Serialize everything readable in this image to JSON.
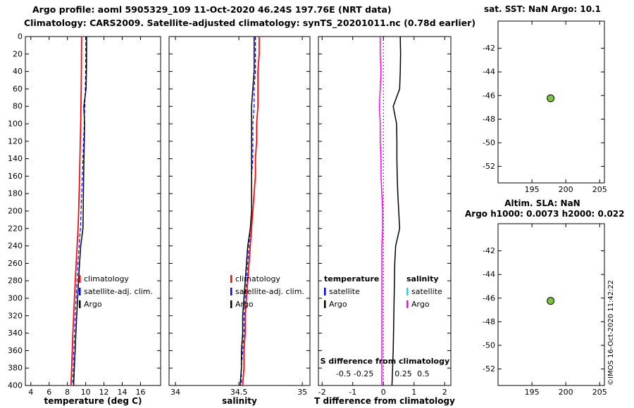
{
  "header": {
    "line1": "Argo profile: aoml 5905329_109 11-Oct-2020 46.24S 197.76E (NRT data)",
    "line2": "Climatology: CARS2009. Satellite-adjusted climatology: synTS_20201011.nc (0.78d earlier)"
  },
  "watermark": "©IMOS 16-Oct-2020 11:42:22",
  "colors": {
    "climatology": "#ff0000",
    "satellite_adjusted_climatology": "#0000ff",
    "argo": "#000000",
    "satellite_salinity": "#00e5e5",
    "argo_salinity": "#ff00ff",
    "station_marker_fill": "#7dc832"
  },
  "chart_data": [
    {
      "type": "line",
      "title": "",
      "xlabel": "temperature (deg C)",
      "ylabel": "depth (m, unlabeled axis)",
      "xlim": [
        3.4,
        18.2
      ],
      "ylim": [
        0,
        400
      ],
      "xticks": [
        4,
        6,
        8,
        10,
        12,
        14,
        16
      ],
      "yticks": [
        0,
        20,
        40,
        60,
        80,
        100,
        120,
        140,
        160,
        180,
        200,
        220,
        240,
        260,
        280,
        300,
        320,
        340,
        360,
        380,
        400
      ],
      "ytick_labels": true,
      "depths": [
        0,
        20,
        40,
        60,
        80,
        100,
        120,
        140,
        160,
        180,
        200,
        220,
        240,
        260,
        280,
        300,
        320,
        340,
        360,
        380,
        400
      ],
      "series": [
        {
          "name": "climatology",
          "color": "#ff0000",
          "width": 1.7,
          "x": [
            9.55,
            9.54,
            9.53,
            9.51,
            9.48,
            9.45,
            9.41,
            9.37,
            9.33,
            9.28,
            9.23,
            9.17,
            9.06,
            8.96,
            8.86,
            8.77,
            8.68,
            8.6,
            8.53,
            8.46,
            8.4
          ]
        },
        {
          "name": "satellite-adj. clim.",
          "color": "#0000ff",
          "width": 1.2,
          "dash": true,
          "x": [
            10.02,
            10.01,
            9.99,
            9.96,
            9.9,
            9.84,
            9.77,
            9.7,
            9.63,
            9.57,
            9.5,
            9.43,
            9.28,
            9.16,
            9.05,
            8.95,
            8.86,
            8.78,
            8.7,
            8.63,
            8.56
          ]
        },
        {
          "name": "Argo",
          "color": "#000000",
          "width": 1.5,
          "x": [
            10.1,
            10.1,
            10.08,
            10.04,
            9.8,
            9.88,
            9.85,
            9.81,
            9.78,
            9.75,
            9.73,
            9.7,
            9.46,
            9.33,
            9.22,
            9.12,
            9.02,
            8.93,
            8.85,
            8.76,
            8.68
          ]
        }
      ],
      "legends": [
        {
          "entries": [
            {
              "label": "climatology",
              "color": "#ff0000"
            },
            {
              "label": "satellite-adj. clim.",
              "color": "#0000ff"
            },
            {
              "label": "Argo",
              "color": "#000000"
            }
          ]
        }
      ]
    },
    {
      "type": "line",
      "title": "",
      "xlabel": "salinity",
      "ylabel": "depth (m, unlabeled axis)",
      "xlim": [
        33.95,
        35.06
      ],
      "ylim": [
        0,
        400
      ],
      "xticks": [
        34,
        34.5,
        35
      ],
      "yticks": [
        0,
        20,
        40,
        60,
        80,
        100,
        120,
        140,
        160,
        180,
        200,
        220,
        240,
        260,
        280,
        300,
        320,
        340,
        360,
        380,
        400
      ],
      "ytick_labels": false,
      "depths": [
        0,
        20,
        40,
        60,
        80,
        100,
        120,
        140,
        160,
        180,
        200,
        220,
        240,
        260,
        280,
        300,
        320,
        340,
        360,
        380,
        400
      ],
      "series": [
        {
          "name": "climatology",
          "color": "#ff0000",
          "width": 1.7,
          "x": [
            34.66,
            34.66,
            34.65,
            34.65,
            34.65,
            34.64,
            34.64,
            34.63,
            34.63,
            34.62,
            34.61,
            34.6,
            34.59,
            34.58,
            34.57,
            34.56,
            34.55,
            34.55,
            34.54,
            34.54,
            34.53
          ]
        },
        {
          "name": "satellite-adj. clim.",
          "color": "#0000ff",
          "width": 1.2,
          "dash": true,
          "x": [
            34.63,
            34.63,
            34.63,
            34.62,
            34.62,
            34.61,
            34.61,
            34.61,
            34.6,
            34.6,
            34.6,
            34.59,
            34.58,
            34.57,
            34.56,
            34.55,
            34.54,
            34.54,
            34.53,
            34.52,
            34.52
          ]
        },
        {
          "name": "Argo",
          "color": "#000000",
          "width": 1.5,
          "x": [
            34.62,
            34.62,
            34.62,
            34.61,
            34.6,
            34.6,
            34.6,
            34.6,
            34.6,
            34.6,
            34.6,
            34.59,
            34.57,
            34.56,
            34.55,
            34.54,
            34.53,
            34.53,
            34.52,
            34.52,
            34.51
          ]
        }
      ],
      "legends": [
        {
          "entries": [
            {
              "label": "climatology",
              "color": "#ff0000"
            },
            {
              "label": "satellite-adj. clim.",
              "color": "#0000ff"
            },
            {
              "label": "Argo",
              "color": "#000000"
            }
          ]
        }
      ]
    },
    {
      "type": "line",
      "title": "",
      "xlabel": "T difference from climatology",
      "ylabel": "depth (m, unlabeled axis)",
      "xlim": [
        -2.12,
        2.2
      ],
      "ylim": [
        0,
        400
      ],
      "xticks": [
        -2,
        -1,
        0,
        1,
        2
      ],
      "yticks": [
        0,
        20,
        40,
        60,
        80,
        100,
        120,
        140,
        160,
        180,
        200,
        220,
        240,
        260,
        280,
        300,
        320,
        340,
        360,
        380,
        400
      ],
      "ytick_labels": false,
      "vline": 0,
      "s_scale": 2.6,
      "depths": [
        0,
        20,
        40,
        60,
        80,
        100,
        120,
        140,
        160,
        180,
        200,
        220,
        240,
        260,
        280,
        300,
        320,
        340,
        360,
        380,
        400
      ],
      "series": [
        {
          "name": "Argo T - climatology",
          "color": "#000000",
          "width": 1.5,
          "x": [
            0.55,
            0.56,
            0.55,
            0.53,
            0.32,
            0.43,
            0.44,
            0.44,
            0.45,
            0.47,
            0.5,
            0.53,
            0.4,
            0.37,
            0.36,
            0.35,
            0.34,
            0.33,
            0.32,
            0.3,
            0.28
          ]
        },
        {
          "name": "Argo S - climatology",
          "color": "#ff00ff",
          "width": 1.5,
          "scale": 2.6,
          "x": [
            -0.04,
            -0.04,
            -0.03,
            -0.04,
            -0.05,
            -0.04,
            -0.04,
            -0.03,
            -0.03,
            -0.02,
            -0.01,
            -0.01,
            -0.02,
            -0.02,
            -0.02,
            -0.02,
            -0.02,
            -0.02,
            -0.02,
            -0.02,
            -0.02
          ]
        }
      ],
      "annotations": [
        {
          "x": 0.05,
          "yfrac": 0.938,
          "text": "S difference from climatology",
          "bold": true
        },
        {
          "s": -0.5,
          "yfrac": 0.974,
          "text": "-0.5"
        },
        {
          "s": -0.25,
          "yfrac": 0.974,
          "text": "-0.25"
        },
        {
          "s": 0.25,
          "yfrac": 0.974,
          "text": "0.25"
        },
        {
          "s": 0.5,
          "yfrac": 0.974,
          "text": "0.5"
        }
      ],
      "legends": [
        {
          "entries": [
            {
              "label": "temperature",
              "bold": true
            },
            {
              "label": "satellite",
              "color": "#0000ff"
            },
            {
              "label": "Argo",
              "color": "#000000"
            }
          ]
        },
        {
          "entries": [
            {
              "label": "salinity",
              "bold": true
            },
            {
              "label": "satellite",
              "color": "#00e5e5"
            },
            {
              "label": "Argo",
              "color": "#ff00ff"
            }
          ]
        }
      ]
    },
    {
      "type": "scatter",
      "title": "sat. SST: NaN Argo: 10.1",
      "xlabel": "",
      "ylabel": "",
      "xlim": [
        190,
        205.7
      ],
      "ylim": [
        -39.7,
        -53.4
      ],
      "xticks": [
        195,
        200,
        205
      ],
      "yticks": [
        -42,
        -44,
        -46,
        -48,
        -50,
        -52
      ],
      "ytick_labels": true,
      "points": [
        {
          "x": 197.76,
          "y": -46.24,
          "fill": "#7dc832",
          "r": 5
        }
      ]
    },
    {
      "type": "scatter",
      "title": "Altim. SLA: NaN",
      "subtitle": "Argo h1000: 0.0073 h2000: 0.022",
      "xlabel": "",
      "ylabel": "",
      "xlim": [
        190,
        205.7
      ],
      "ylim": [
        -39.7,
        -53.4
      ],
      "xticks": [
        195,
        200,
        205
      ],
      "yticks": [
        -42,
        -44,
        -46,
        -48,
        -50,
        -52
      ],
      "ytick_labels": true,
      "points": [
        {
          "x": 197.76,
          "y": -46.24,
          "fill": "#7dc832",
          "r": 5
        }
      ]
    }
  ]
}
